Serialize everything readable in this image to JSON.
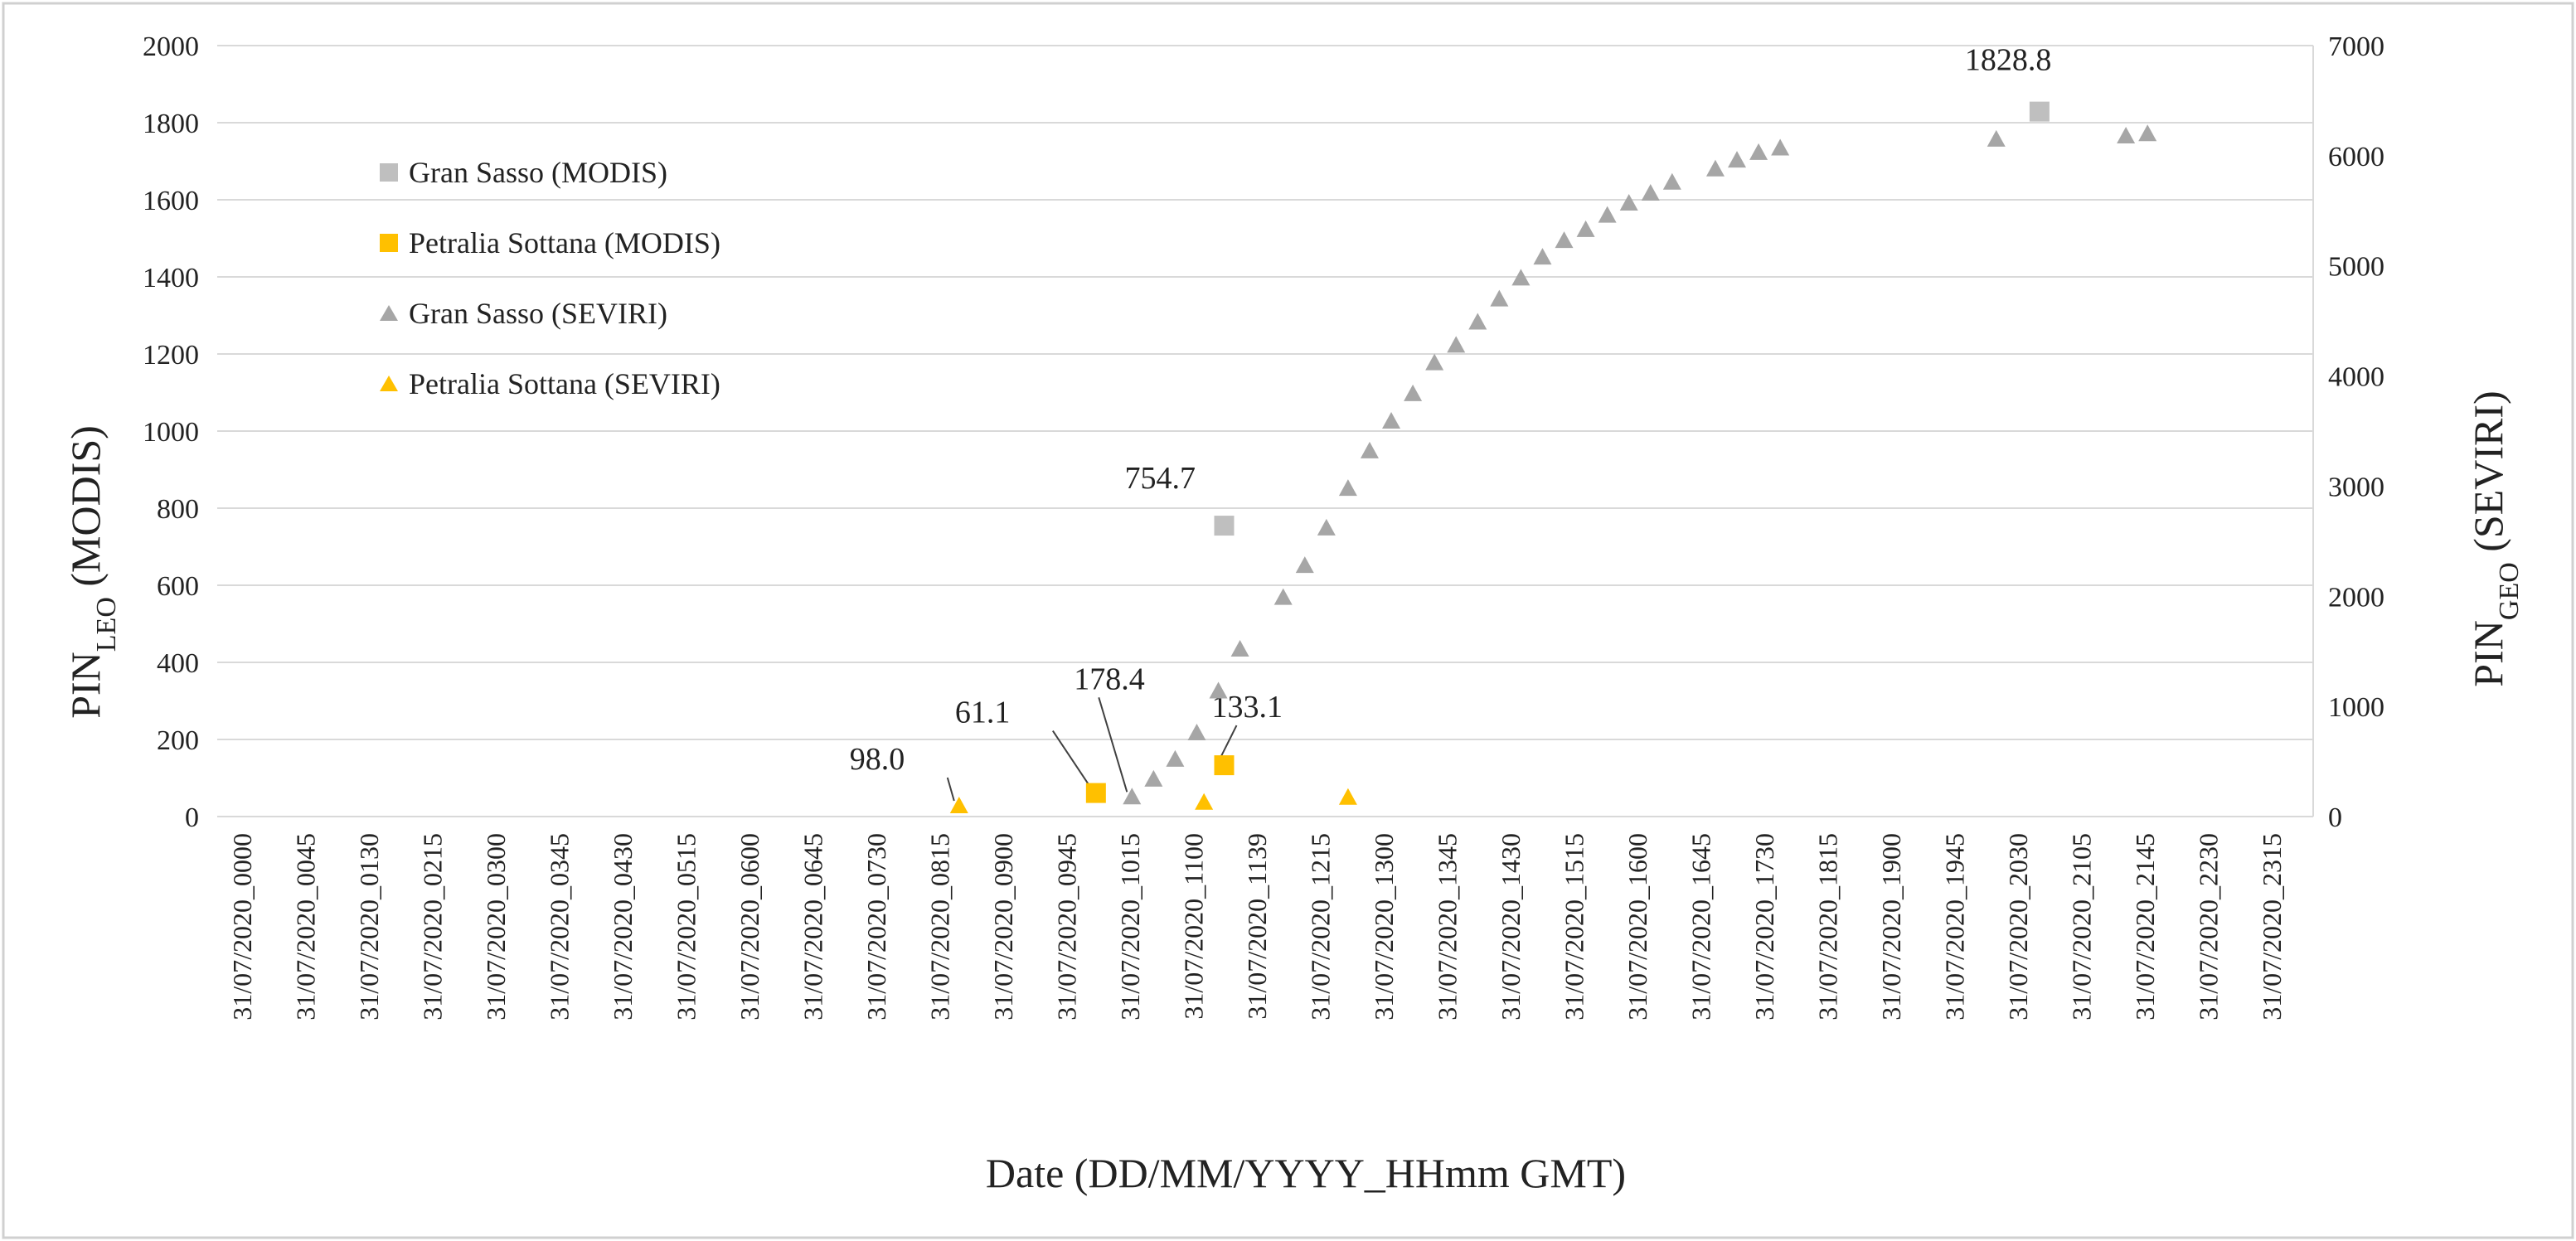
{
  "chart_data": {
    "type": "scatter",
    "title": "",
    "xlabel": "Date (DD/MM/YYYY_HHmm GMT)",
    "ylabel_left": {
      "base": "PIN",
      "sub": "LEO",
      "suffix": " (MODIS)"
    },
    "ylabel_right": {
      "base": "PIN",
      "sub": "GEO",
      "suffix": " (SEVIRI)"
    },
    "ylim_left": [
      0,
      2000
    ],
    "ylim_right": [
      0,
      7000
    ],
    "yticks_left": [
      "0",
      "200",
      "400",
      "600",
      "800",
      "1000",
      "1200",
      "1400",
      "1600",
      "1800",
      "2000"
    ],
    "yticks_right": [
      "0",
      "1000",
      "2000",
      "3000",
      "4000",
      "5000",
      "6000",
      "7000"
    ],
    "x_range_minutes": [
      0,
      1455
    ],
    "xtick_labels": [
      "31/07/2020_0000",
      "31/07/2020_0045",
      "31/07/2020_0130",
      "31/07/2020_0215",
      "31/07/2020_0300",
      "31/07/2020_0345",
      "31/07/2020_0430",
      "31/07/2020_0515",
      "31/07/2020_0600",
      "31/07/2020_0645",
      "31/07/2020_0730",
      "31/07/2020_0815",
      "31/07/2020_0900",
      "31/07/2020_0945",
      "31/07/2020_1015",
      "31/07/2020_1100",
      "31/07/2020_1139",
      "31/07/2020_1215",
      "31/07/2020_1300",
      "31/07/2020_1345",
      "31/07/2020_1430",
      "31/07/2020_1515",
      "31/07/2020_1600",
      "31/07/2020_1645",
      "31/07/2020_1730",
      "31/07/2020_1815",
      "31/07/2020_1900",
      "31/07/2020_1945",
      "31/07/2020_2030",
      "31/07/2020_2105",
      "31/07/2020_2145",
      "31/07/2020_2230",
      "31/07/2020_2315"
    ],
    "legend_position": "top-left",
    "series": [
      {
        "name": "Gran Sasso (MODIS)",
        "marker": "square",
        "color": "#bfbfbf",
        "axis": "left",
        "points": [
          {
            "x": 699,
            "y": 754.7,
            "label": "754.7"
          },
          {
            "x": 1265,
            "y": 1828.8,
            "label": "1828.8"
          }
        ]
      },
      {
        "name": "Petralia Sottana (MODIS)",
        "marker": "square",
        "color": "#ffc000",
        "axis": "left",
        "points": [
          {
            "x": 610,
            "y": 61.1,
            "label": "61.1"
          },
          {
            "x": 699,
            "y": 133.1,
            "label": "133.1"
          }
        ]
      },
      {
        "name": "Gran Sasso (SEVIRI)",
        "marker": "triangle",
        "color": "#a6a6a6",
        "axis": "right",
        "points": [
          {
            "x": 635,
            "y": 178.4,
            "label": "178.4"
          },
          {
            "x": 650,
            "y": 340
          },
          {
            "x": 665,
            "y": 520
          },
          {
            "x": 680,
            "y": 760
          },
          {
            "x": 695,
            "y": 1140
          },
          {
            "x": 710,
            "y": 1520
          },
          {
            "x": 740,
            "y": 1990
          },
          {
            "x": 755,
            "y": 2280
          },
          {
            "x": 770,
            "y": 2620
          },
          {
            "x": 785,
            "y": 2980
          },
          {
            "x": 800,
            "y": 3320
          },
          {
            "x": 815,
            "y": 3590
          },
          {
            "x": 830,
            "y": 3840
          },
          {
            "x": 845,
            "y": 4120
          },
          {
            "x": 860,
            "y": 4280
          },
          {
            "x": 875,
            "y": 4490
          },
          {
            "x": 890,
            "y": 4700
          },
          {
            "x": 905,
            "y": 4890
          },
          {
            "x": 920,
            "y": 5080
          },
          {
            "x": 935,
            "y": 5230
          },
          {
            "x": 950,
            "y": 5330
          },
          {
            "x": 965,
            "y": 5460
          },
          {
            "x": 980,
            "y": 5570
          },
          {
            "x": 995,
            "y": 5660
          },
          {
            "x": 1010,
            "y": 5760
          },
          {
            "x": 1040,
            "y": 5880
          },
          {
            "x": 1055,
            "y": 5960
          },
          {
            "x": 1070,
            "y": 6030
          },
          {
            "x": 1085,
            "y": 6070
          },
          {
            "x": 1235,
            "y": 6150
          },
          {
            "x": 1325,
            "y": 6180
          },
          {
            "x": 1340,
            "y": 6200
          }
        ]
      },
      {
        "name": "Petralia Sottana (SEVIRI)",
        "marker": "triangle",
        "color": "#ffc000",
        "axis": "right",
        "points": [
          {
            "x": 515,
            "y": 98.0,
            "label": "98.0"
          },
          {
            "x": 685,
            "y": 130
          },
          {
            "x": 785,
            "y": 175
          }
        ]
      }
    ]
  }
}
